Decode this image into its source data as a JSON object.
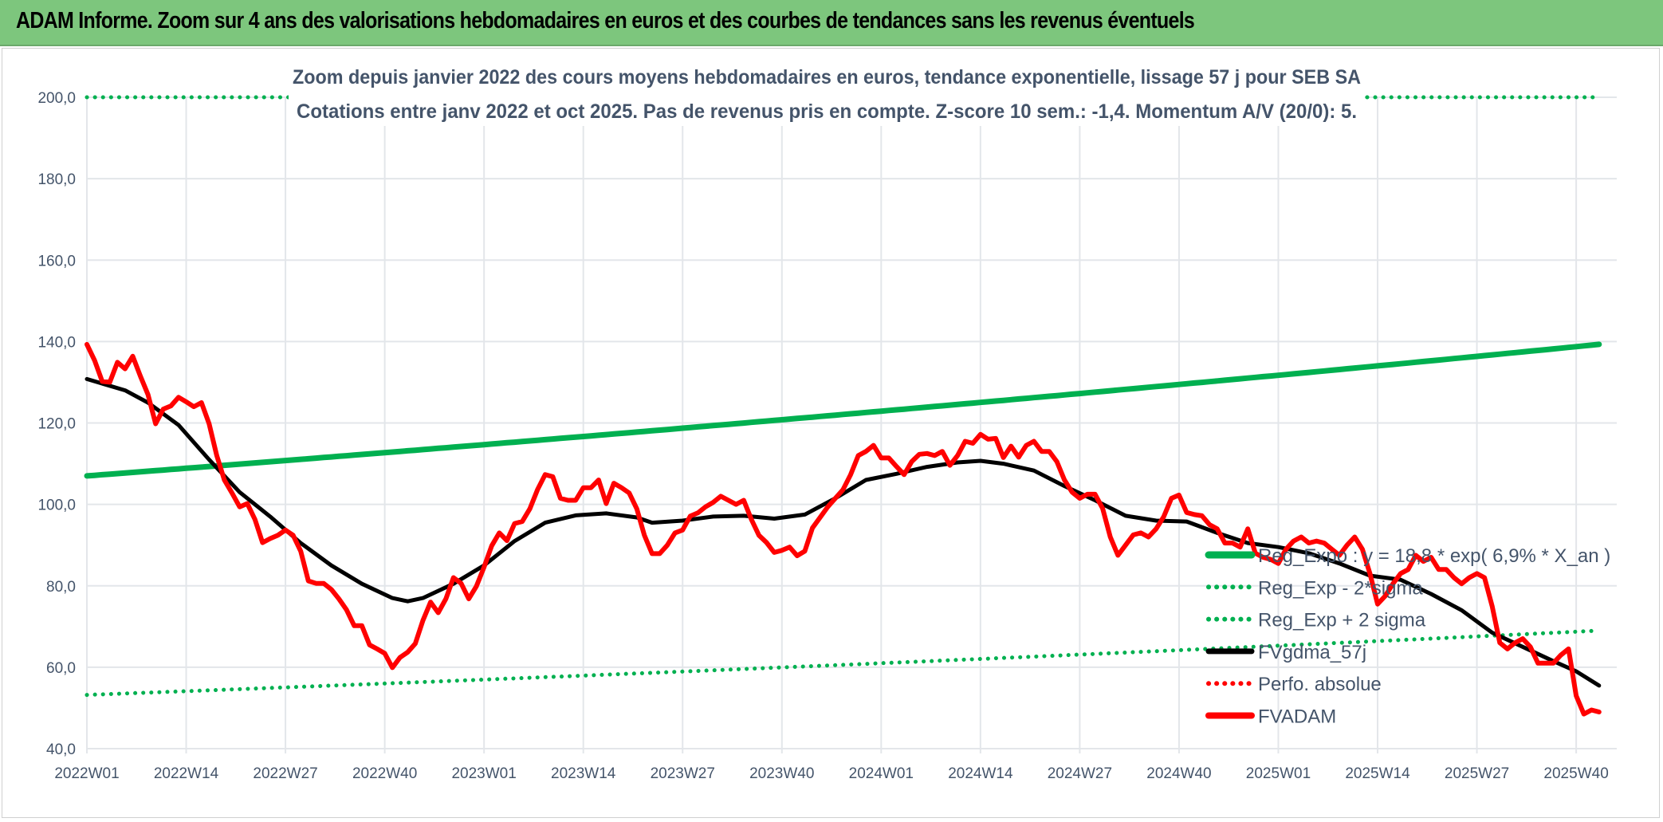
{
  "header": {
    "title": "ADAM Informe. Zoom sur 4 ans des valorisations hebdomadaires en euros et des courbes de tendances sans les revenus éventuels"
  },
  "chart_data": {
    "type": "line",
    "title": "Zoom depuis janvier 2022 des cours moyens hebdomadaires en euros, tendance exponentielle, lissage 57 j pour SEB SA",
    "subtitle": "Cotations entre janv 2022 et oct 2025. Pas de revenus pris en compte. Z-score 10 sem.: -1,4. Momentum A/V (20/0): 5.",
    "xlabel": "",
    "ylabel": "",
    "ylim": [
      40,
      200
    ],
    "y_ticks": [
      "40,0",
      "60,0",
      "80,0",
      "100,0",
      "120,0",
      "140,0",
      "160,0",
      "180,0",
      "200,0"
    ],
    "y_tick_values": [
      40,
      60,
      80,
      100,
      120,
      140,
      160,
      180,
      200
    ],
    "x_ticks": [
      "2022W01",
      "2022W14",
      "2022W27",
      "2022W40",
      "2023W01",
      "2023W14",
      "2023W27",
      "2023W40",
      "2024W01",
      "2024W14",
      "2024W27",
      "2024W40",
      "2025W01",
      "2025W14",
      "2025W27",
      "2025W40"
    ],
    "x_tick_week_index": [
      0,
      13,
      26,
      39,
      52,
      65,
      78,
      91,
      104,
      117,
      130,
      143,
      156,
      169,
      182,
      195
    ],
    "grid": true,
    "legend_position": "bottom-right",
    "series": [
      {
        "name": "Reg_Expo : y = 18,8 * exp( 6,9% *  X_an )",
        "color": "#00b050",
        "style": "solid",
        "points": [
          [
            0,
            107
          ],
          [
            198,
            139.3
          ]
        ]
      },
      {
        "name": "Reg_Exp - 2*sigma",
        "color": "#00b050",
        "style": "dotted",
        "points": [
          [
            0,
            53.2
          ],
          [
            198,
            69
          ]
        ]
      },
      {
        "name": "Reg_Exp + 2 sigma",
        "color": "#00b050",
        "style": "dotted",
        "points": [
          [
            0,
            200
          ],
          [
            198,
            200
          ]
        ]
      },
      {
        "name": "FVgdma_57j",
        "color": "#000000",
        "style": "solid",
        "points": [
          [
            0,
            130.8
          ],
          [
            5,
            128
          ],
          [
            8,
            125
          ],
          [
            12,
            119.5
          ],
          [
            16,
            111
          ],
          [
            20,
            103
          ],
          [
            24,
            97
          ],
          [
            28,
            90.5
          ],
          [
            32,
            85
          ],
          [
            36,
            80.5
          ],
          [
            40,
            77
          ],
          [
            42,
            76.2
          ],
          [
            44,
            77
          ],
          [
            48,
            80.5
          ],
          [
            52,
            85
          ],
          [
            56,
            91
          ],
          [
            60,
            95.5
          ],
          [
            64,
            97.3
          ],
          [
            68,
            97.8
          ],
          [
            72,
            96.8
          ],
          [
            74,
            95.5
          ],
          [
            78,
            96
          ],
          [
            82,
            97
          ],
          [
            86,
            97.2
          ],
          [
            90,
            96.5
          ],
          [
            94,
            97.5
          ],
          [
            98,
            101.5
          ],
          [
            102,
            106
          ],
          [
            106,
            107.5
          ],
          [
            110,
            109.2
          ],
          [
            114,
            110.3
          ],
          [
            117,
            110.7
          ],
          [
            120,
            110
          ],
          [
            124,
            108.3
          ],
          [
            128,
            104.5
          ],
          [
            132,
            101
          ],
          [
            136,
            97.2
          ],
          [
            140,
            96
          ],
          [
            144,
            95.8
          ],
          [
            148,
            93
          ],
          [
            152,
            90.5
          ],
          [
            156,
            89.5
          ],
          [
            160,
            88
          ],
          [
            164,
            85.5
          ],
          [
            168,
            82.5
          ],
          [
            172,
            81.5
          ],
          [
            176,
            78
          ],
          [
            180,
            74
          ],
          [
            184,
            68.5
          ],
          [
            188,
            65
          ],
          [
            192,
            61.5
          ],
          [
            195,
            59
          ],
          [
            198,
            55.5
          ]
        ]
      },
      {
        "name": "Perfo. absolue",
        "color": "#ff0000",
        "style": "dotted",
        "points": []
      },
      {
        "name": "FVADAM",
        "color": "#ff0000",
        "style": "solid",
        "values": [
          139.3,
          135.4,
          130.2,
          130,
          134.9,
          133.3,
          136.4,
          131.5,
          127,
          119.8,
          123.4,
          124.2,
          126.3,
          125.2,
          124,
          125,
          119.8,
          112,
          106,
          102.8,
          99.4,
          100.2,
          96.3,
          90.6,
          91.6,
          92.4,
          93.7,
          92.4,
          88.5,
          81.2,
          80.6,
          80.6,
          79.1,
          76.8,
          74.1,
          70.2,
          70.2,
          65.5,
          64.5,
          63.4,
          59.9,
          62.4,
          63.7,
          65.8,
          71.5,
          76,
          73.4,
          76.8,
          82,
          80.6,
          76.8,
          79.9,
          84.6,
          89.8,
          93,
          91.1,
          95.3,
          95.8,
          98.9,
          103.6,
          107.3,
          106.8,
          101.5,
          101,
          101,
          104.1,
          104.1,
          106,
          100.2,
          105.2,
          104.1,
          102.8,
          98.9,
          92.4,
          87.9,
          87.9,
          90,
          93,
          93.7,
          97.1,
          97.9,
          99.4,
          100.5,
          102,
          101,
          100,
          101,
          96.3,
          92.4,
          90.6,
          88.2,
          88.7,
          89.5,
          87.4,
          88.5,
          94.2,
          96.8,
          99.4,
          101.5,
          103.6,
          107.3,
          112,
          113,
          114.5,
          111.4,
          111.4,
          109.3,
          107.3,
          110.5,
          112.3,
          112.5,
          112,
          113,
          109.6,
          112,
          115.5,
          115,
          117.2,
          116,
          116.2,
          111.5,
          114.3,
          111.6,
          114.5,
          115.5,
          113,
          113,
          110.5,
          106,
          103,
          101.5,
          102.5,
          102.5,
          99,
          92,
          87.5,
          90,
          92.5,
          93,
          92,
          94,
          97,
          101.5,
          102.3,
          98,
          97.5,
          97.2,
          95,
          94,
          90.5,
          90.5,
          89.5,
          94,
          88,
          87,
          86.5,
          85.5,
          89,
          91,
          92,
          90.5,
          91,
          90.5,
          89,
          87.5,
          90,
          92,
          89,
          83,
          75.5,
          77.5,
          80.5,
          83,
          84,
          87.5,
          86,
          87,
          84,
          84,
          82,
          80.5,
          82,
          83,
          82,
          75,
          66,
          64.5,
          66,
          67,
          65,
          61,
          61,
          61,
          63,
          64.5,
          53,
          48.5,
          49.5,
          49
        ]
      }
    ]
  }
}
